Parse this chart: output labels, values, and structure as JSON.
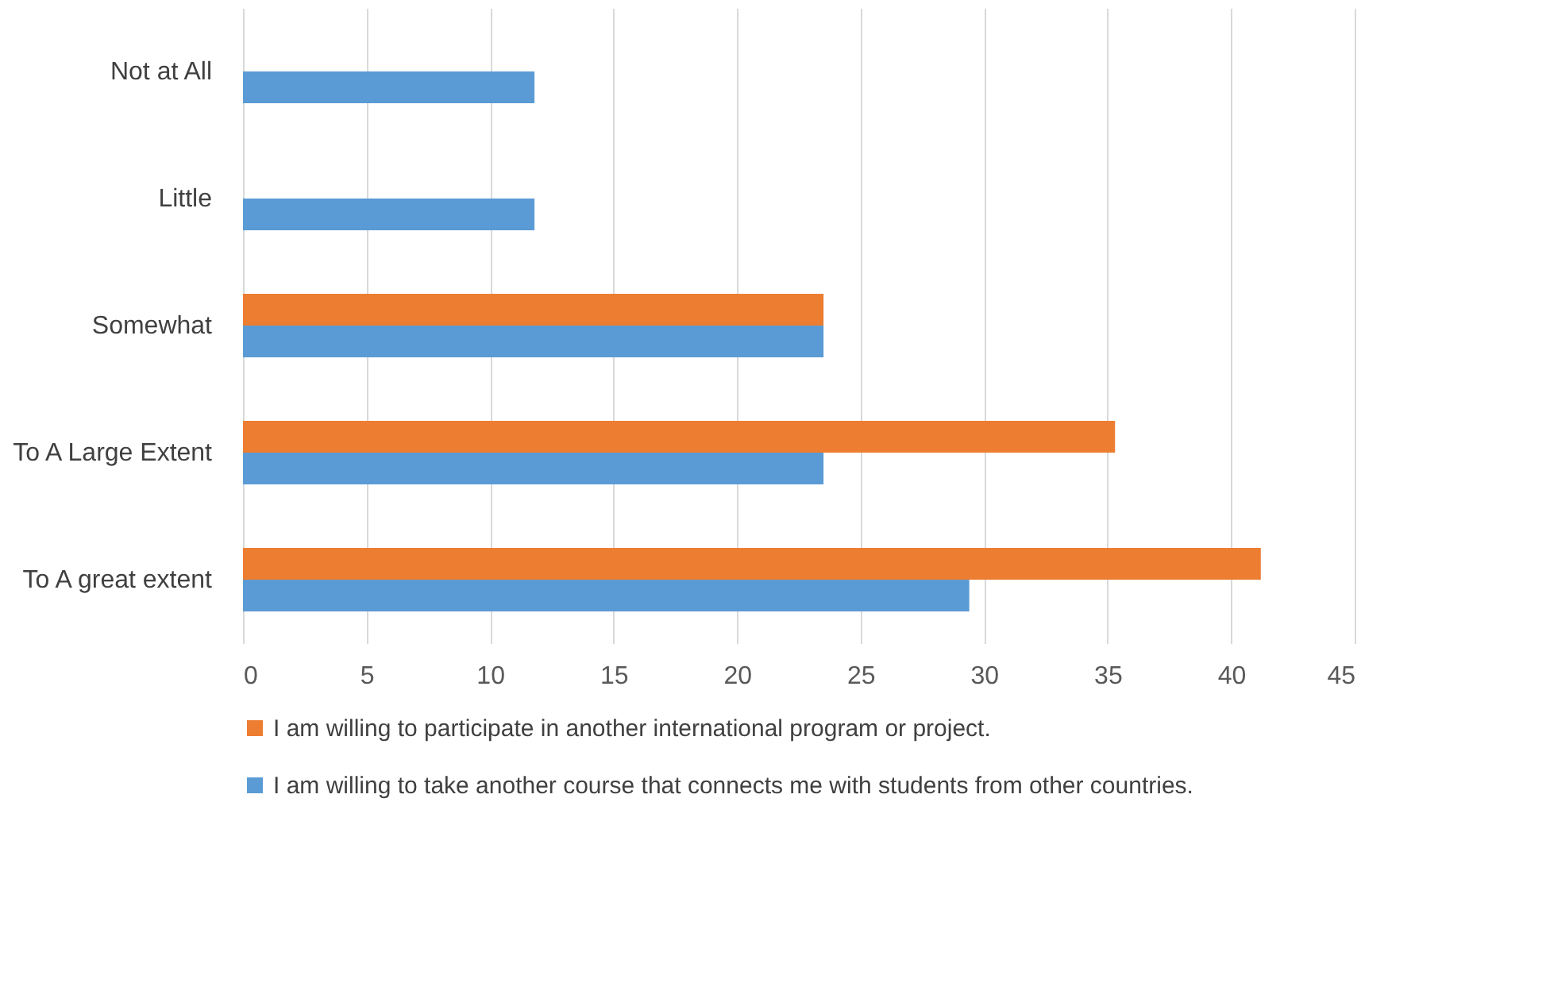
{
  "chart_data": {
    "type": "bar",
    "orientation": "horizontal",
    "categories": [
      "Not at All",
      "Little",
      "Somewhat",
      "To A Large Extent",
      "To A great extent"
    ],
    "series": [
      {
        "name": "I am willing to participate in another international program or project.",
        "color": "#ed7d31",
        "values": [
          null,
          null,
          23.5,
          35.3,
          41.2
        ]
      },
      {
        "name": "I am willing to take another course that connects me with students from other countries.",
        "color": "#5b9bd5",
        "values": [
          11.8,
          11.8,
          23.5,
          23.5,
          29.4
        ]
      }
    ],
    "xlim": [
      0,
      45
    ],
    "xticks": [
      0,
      5,
      10,
      15,
      20,
      25,
      30,
      35,
      40,
      45
    ],
    "grid": "x",
    "legend": "bottom"
  }
}
